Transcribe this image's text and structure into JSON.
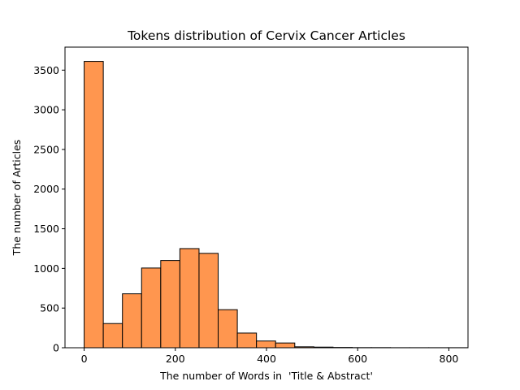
{
  "chart_data": {
    "type": "bar",
    "title": "Tokens distribution of Cervix Cancer Articles",
    "xlabel": "The number of Words in  'Title & Abstract'",
    "ylabel": "The number of Articles",
    "xlim": [
      -42,
      842
    ],
    "ylim": [
      0,
      3790
    ],
    "xticks": [
      0,
      200,
      400,
      600,
      800
    ],
    "yticks": [
      0,
      500,
      1000,
      1500,
      2000,
      2500,
      3000,
      3500
    ],
    "bin_edges": [
      0,
      42,
      84,
      126,
      168,
      210,
      252,
      294,
      336,
      378,
      420,
      462,
      504,
      546,
      588,
      630,
      672,
      714,
      756,
      798,
      840
    ],
    "values": [
      3610,
      305,
      680,
      1005,
      1100,
      1250,
      1190,
      480,
      185,
      85,
      60,
      12,
      8,
      4,
      2,
      2,
      1,
      1,
      1,
      1
    ],
    "bar_color": "#ff964f",
    "edge_color": "#000000",
    "grid": false
  }
}
